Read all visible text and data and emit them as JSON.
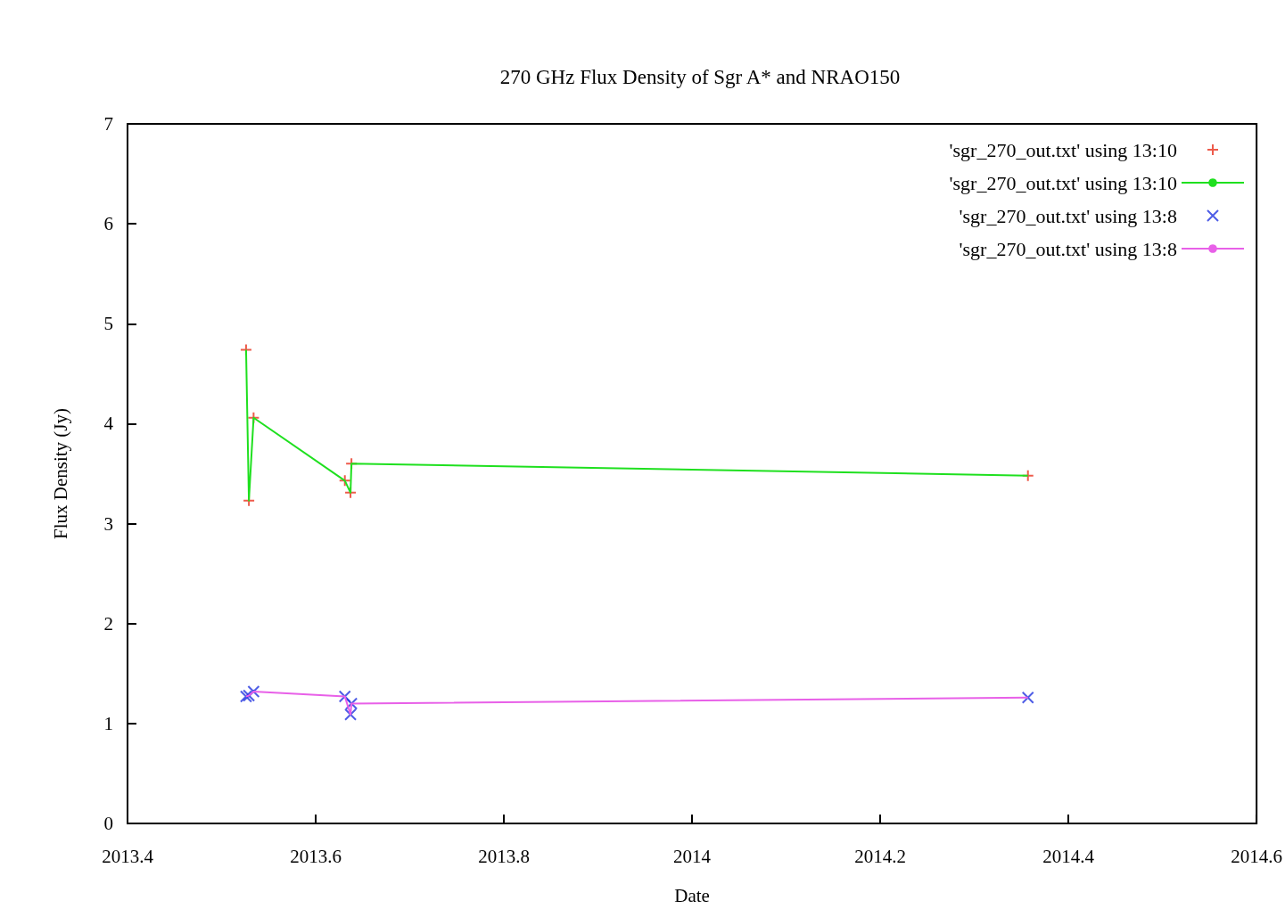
{
  "chart_data": {
    "type": "line",
    "title": "270 GHz Flux Density of Sgr A* and NRAO150",
    "xlabel": "Date",
    "ylabel": "Flux Density (Jy)",
    "x": [
      2013.526,
      2013.529,
      2013.534,
      2013.631,
      2013.637,
      2013.638,
      2014.357
    ],
    "series": [
      {
        "type": "scatter",
        "name": "'sgr_270_out.txt' using 13:10",
        "color": "#e8321e",
        "marker": "cross",
        "values": [
          4.74,
          3.23,
          4.06,
          3.43,
          3.31,
          3.6,
          3.48
        ]
      },
      {
        "name": "'sgr_270_out.txt' using 13:10",
        "color": "#1fe01f",
        "marker": "none",
        "values": [
          4.74,
          3.23,
          4.06,
          3.43,
          3.31,
          3.6,
          3.48
        ]
      },
      {
        "type": "scatter",
        "name": "'sgr_270_out.txt' using 13:8",
        "color": "#2234e0",
        "marker": "x",
        "values": [
          1.27,
          1.28,
          1.32,
          1.27,
          1.09,
          1.2,
          1.26
        ]
      },
      {
        "name": "'sgr_270_out.txt' using 13:8",
        "color": "#e860e8",
        "marker": "none",
        "values": [
          1.27,
          1.28,
          1.32,
          1.27,
          1.09,
          1.2,
          1.26
        ]
      }
    ],
    "xlim": [
      2013.4,
      2014.6
    ],
    "xticks": [
      2013.4,
      2013.6,
      2013.8,
      2014,
      2014.2,
      2014.4,
      2014.6
    ],
    "ylim": [
      0,
      7
    ],
    "yticks": [
      0,
      1,
      2,
      3,
      4,
      5,
      6,
      7
    ],
    "grid": false,
    "legend": "top right"
  }
}
